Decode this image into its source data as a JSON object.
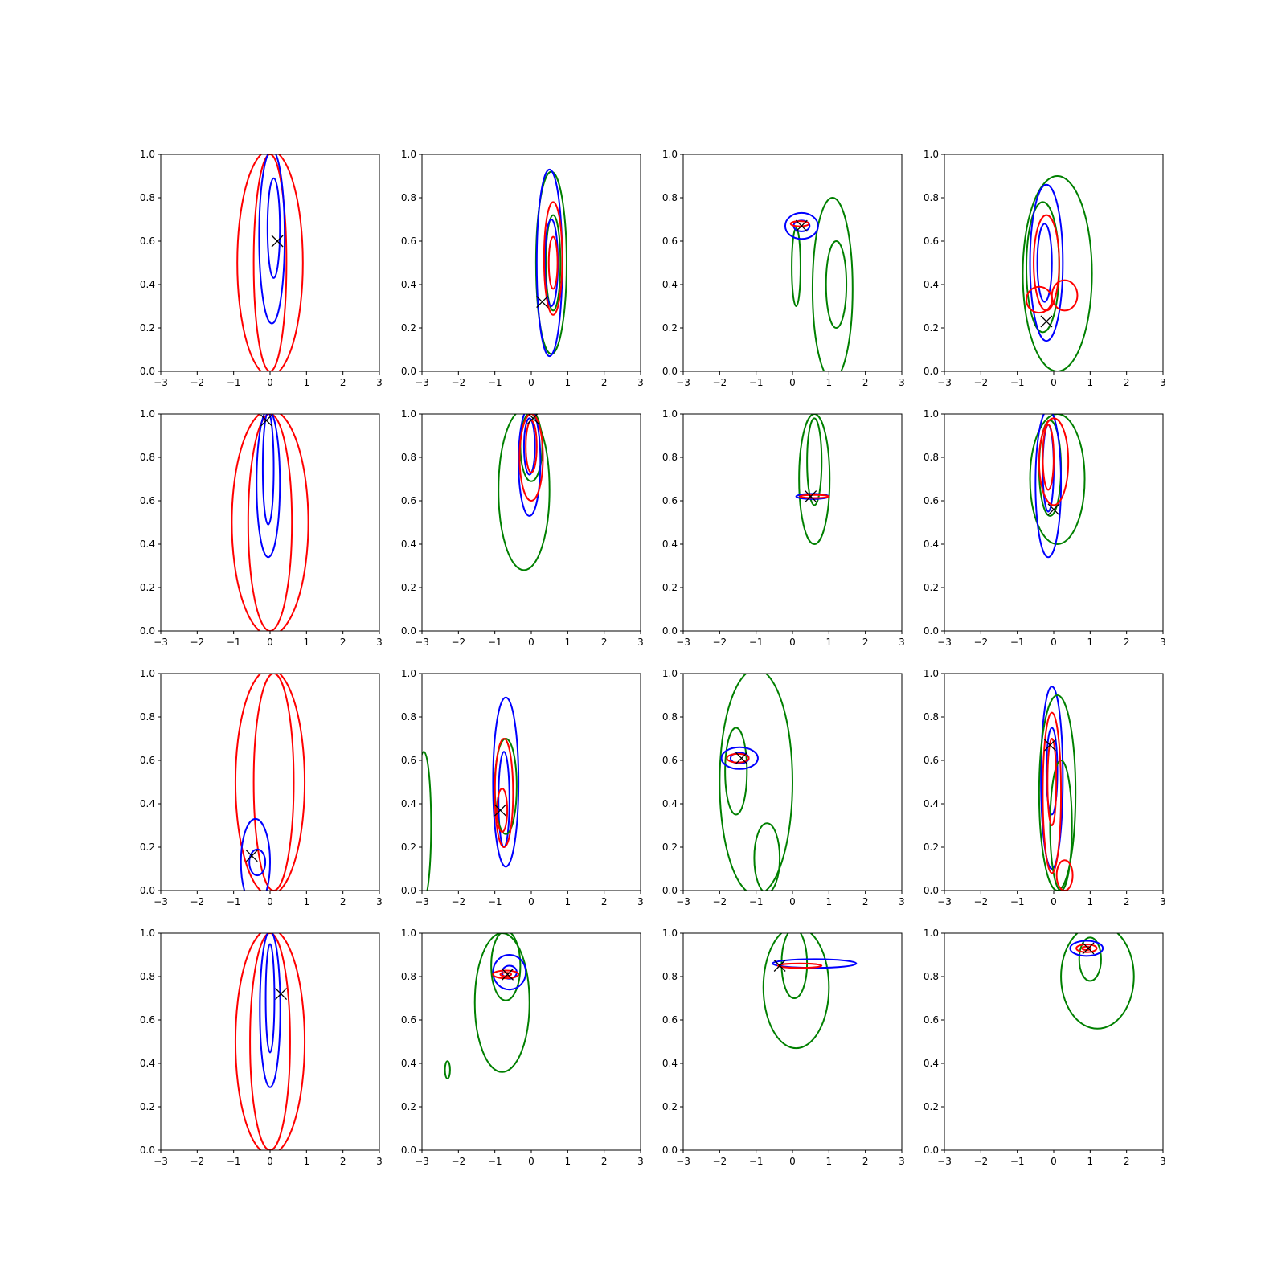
{
  "chart_data": {
    "type": "contour",
    "layout": {
      "rows": 4,
      "cols": 4
    },
    "xlim": [
      -3,
      3
    ],
    "ylim": [
      0,
      1
    ],
    "xticks": [
      -3,
      -2,
      -1,
      0,
      1,
      2,
      3
    ],
    "yticks": [
      0.0,
      0.2,
      0.4,
      0.6,
      0.8,
      1.0
    ],
    "xtick_labels": [
      "−3",
      "−2",
      "−1",
      "0",
      "1",
      "2",
      "3"
    ],
    "ytick_labels": [
      "0.0",
      "0.2",
      "0.4",
      "0.6",
      "0.8",
      "1.0"
    ],
    "grid": false,
    "colors": {
      "red": "#ff0000",
      "blue": "#0000ff",
      "green": "#008000",
      "marker": "#000000"
    },
    "panels": [
      {
        "marker": [
          0.2,
          0.6
        ],
        "contours": [
          {
            "color": "red",
            "levels": [
              {
                "cx": 0.0,
                "cy": 0.5,
                "rx": 0.9,
                "ry": 0.52
              },
              {
                "cx": 0.0,
                "cy": 0.5,
                "rx": 0.45,
                "ry": 0.5
              }
            ]
          },
          {
            "color": "blue",
            "levels": [
              {
                "cx": 0.05,
                "cy": 0.62,
                "rx": 0.35,
                "ry": 0.4
              },
              {
                "cx": 0.1,
                "cy": 0.66,
                "rx": 0.17,
                "ry": 0.23
              }
            ]
          }
        ]
      },
      {
        "marker": [
          0.3,
          0.32
        ],
        "contours": [
          {
            "color": "green",
            "levels": [
              {
                "cx": 0.55,
                "cy": 0.5,
                "rx": 0.42,
                "ry": 0.42
              },
              {
                "cx": 0.6,
                "cy": 0.5,
                "rx": 0.2,
                "ry": 0.22
              }
            ]
          },
          {
            "color": "blue",
            "levels": [
              {
                "cx": 0.5,
                "cy": 0.5,
                "rx": 0.35,
                "ry": 0.43
              },
              {
                "cx": 0.55,
                "cy": 0.5,
                "rx": 0.18,
                "ry": 0.2
              }
            ]
          },
          {
            "color": "red",
            "levels": [
              {
                "cx": 0.6,
                "cy": 0.52,
                "rx": 0.25,
                "ry": 0.26
              },
              {
                "cx": 0.6,
                "cy": 0.5,
                "rx": 0.12,
                "ry": 0.12
              }
            ]
          }
        ]
      },
      {
        "marker": [
          0.25,
          0.67
        ],
        "contours": [
          {
            "color": "green",
            "levels": [
              {
                "cx": 1.1,
                "cy": 0.38,
                "rx": 0.55,
                "ry": 0.42
              },
              {
                "cx": 1.2,
                "cy": 0.4,
                "rx": 0.28,
                "ry": 0.2
              },
              {
                "cx": 0.1,
                "cy": 0.48,
                "rx": 0.12,
                "ry": 0.18
              }
            ]
          },
          {
            "color": "blue",
            "levels": [
              {
                "cx": 0.25,
                "cy": 0.67,
                "rx": 0.45,
                "ry": 0.06
              },
              {
                "cx": 0.25,
                "cy": 0.67,
                "rx": 0.22,
                "ry": 0.025
              }
            ]
          },
          {
            "color": "red",
            "levels": [
              {
                "cx": 0.2,
                "cy": 0.68,
                "rx": 0.25,
                "ry": 0.012
              }
            ]
          }
        ]
      },
      {
        "marker": [
          -0.2,
          0.23
        ],
        "contours": [
          {
            "color": "green",
            "levels": [
              {
                "cx": 0.1,
                "cy": 0.45,
                "rx": 0.95,
                "ry": 0.45
              },
              {
                "cx": -0.3,
                "cy": 0.48,
                "rx": 0.45,
                "ry": 0.3
              }
            ]
          },
          {
            "color": "blue",
            "levels": [
              {
                "cx": -0.2,
                "cy": 0.5,
                "rx": 0.45,
                "ry": 0.36
              },
              {
                "cx": -0.25,
                "cy": 0.5,
                "rx": 0.2,
                "ry": 0.18
              }
            ]
          },
          {
            "color": "red",
            "levels": [
              {
                "cx": -0.2,
                "cy": 0.5,
                "rx": 0.35,
                "ry": 0.22
              },
              {
                "cx": 0.3,
                "cy": 0.35,
                "rx": 0.35,
                "ry": 0.07
              },
              {
                "cx": -0.4,
                "cy": 0.33,
                "rx": 0.35,
                "ry": 0.06
              }
            ]
          }
        ]
      },
      {
        "marker": [
          -0.1,
          0.97
        ],
        "contours": [
          {
            "color": "red",
            "levels": [
              {
                "cx": 0.0,
                "cy": 0.5,
                "rx": 1.05,
                "ry": 0.52
              },
              {
                "cx": 0.0,
                "cy": 0.5,
                "rx": 0.6,
                "ry": 0.5
              }
            ]
          },
          {
            "color": "blue",
            "levels": [
              {
                "cx": -0.05,
                "cy": 0.68,
                "rx": 0.32,
                "ry": 0.34
              },
              {
                "cx": -0.05,
                "cy": 0.75,
                "rx": 0.15,
                "ry": 0.26
              }
            ]
          }
        ]
      },
      {
        "marker": [
          0.05,
          0.98
        ],
        "contours": [
          {
            "color": "green",
            "levels": [
              {
                "cx": -0.2,
                "cy": 0.65,
                "rx": 0.7,
                "ry": 0.37
              },
              {
                "cx": 0.0,
                "cy": 0.85,
                "rx": 0.3,
                "ry": 0.16
              }
            ]
          },
          {
            "color": "blue",
            "levels": [
              {
                "cx": -0.05,
                "cy": 0.78,
                "rx": 0.3,
                "ry": 0.25
              },
              {
                "cx": -0.05,
                "cy": 0.85,
                "rx": 0.15,
                "ry": 0.13
              }
            ]
          },
          {
            "color": "red",
            "levels": [
              {
                "cx": 0.0,
                "cy": 0.8,
                "rx": 0.32,
                "ry": 0.2
              },
              {
                "cx": 0.0,
                "cy": 0.85,
                "rx": 0.15,
                "ry": 0.12
              }
            ]
          }
        ]
      },
      {
        "marker": [
          0.5,
          0.62
        ],
        "contours": [
          {
            "color": "green",
            "levels": [
              {
                "cx": 0.6,
                "cy": 0.7,
                "rx": 0.42,
                "ry": 0.3
              },
              {
                "cx": 0.6,
                "cy": 0.78,
                "rx": 0.2,
                "ry": 0.2
              }
            ]
          },
          {
            "color": "blue",
            "levels": [
              {
                "cx": 0.55,
                "cy": 0.62,
                "rx": 0.45,
                "ry": 0.012
              }
            ]
          },
          {
            "color": "red",
            "levels": [
              {
                "cx": 0.6,
                "cy": 0.62,
                "rx": 0.4,
                "ry": 0.007
              }
            ]
          }
        ]
      },
      {
        "marker": [
          0.0,
          0.56
        ],
        "contours": [
          {
            "color": "green",
            "levels": [
              {
                "cx": 0.1,
                "cy": 0.7,
                "rx": 0.75,
                "ry": 0.3
              },
              {
                "cx": -0.1,
                "cy": 0.75,
                "rx": 0.3,
                "ry": 0.22
              }
            ]
          },
          {
            "color": "blue",
            "levels": [
              {
                "cx": -0.15,
                "cy": 0.68,
                "rx": 0.35,
                "ry": 0.34
              },
              {
                "cx": -0.15,
                "cy": 0.75,
                "rx": 0.15,
                "ry": 0.2
              }
            ]
          },
          {
            "color": "red",
            "levels": [
              {
                "cx": 0.0,
                "cy": 0.78,
                "rx": 0.4,
                "ry": 0.2
              },
              {
                "cx": -0.15,
                "cy": 0.8,
                "rx": 0.15,
                "ry": 0.15
              }
            ]
          }
        ]
      },
      {
        "marker": [
          -0.5,
          0.16
        ],
        "contours": [
          {
            "color": "red",
            "levels": [
              {
                "cx": 0.0,
                "cy": 0.5,
                "rx": 0.95,
                "ry": 0.52
              },
              {
                "cx": 0.1,
                "cy": 0.5,
                "rx": 0.55,
                "ry": 0.5
              }
            ]
          },
          {
            "color": "blue",
            "levels": [
              {
                "cx": -0.4,
                "cy": 0.13,
                "rx": 0.4,
                "ry": 0.2
              },
              {
                "cx": -0.35,
                "cy": 0.13,
                "rx": 0.22,
                "ry": 0.06
              }
            ]
          }
        ]
      },
      {
        "marker": [
          -0.85,
          0.37
        ],
        "contours": [
          {
            "color": "blue",
            "levels": [
              {
                "cx": -0.7,
                "cy": 0.5,
                "rx": 0.35,
                "ry": 0.39
              },
              {
                "cx": -0.75,
                "cy": 0.42,
                "rx": 0.15,
                "ry": 0.22
              }
            ]
          },
          {
            "color": "green",
            "levels": [
              {
                "cx": -0.7,
                "cy": 0.48,
                "rx": 0.3,
                "ry": 0.22
              },
              {
                "cx": -2.95,
                "cy": 0.3,
                "rx": 0.2,
                "ry": 0.34
              }
            ]
          },
          {
            "color": "red",
            "levels": [
              {
                "cx": -0.75,
                "cy": 0.45,
                "rx": 0.25,
                "ry": 0.25
              },
              {
                "cx": -0.8,
                "cy": 0.37,
                "rx": 0.14,
                "ry": 0.1
              }
            ]
          }
        ]
      },
      {
        "marker": [
          -1.4,
          0.61
        ],
        "contours": [
          {
            "color": "green",
            "levels": [
              {
                "cx": -1.0,
                "cy": 0.5,
                "rx": 1.0,
                "ry": 0.52
              },
              {
                "cx": -1.55,
                "cy": 0.55,
                "rx": 0.3,
                "ry": 0.2
              },
              {
                "cx": -0.7,
                "cy": 0.15,
                "rx": 0.35,
                "ry": 0.16
              }
            ]
          },
          {
            "color": "blue",
            "levels": [
              {
                "cx": -1.45,
                "cy": 0.61,
                "rx": 0.5,
                "ry": 0.05
              },
              {
                "cx": -1.45,
                "cy": 0.61,
                "rx": 0.25,
                "ry": 0.025
              }
            ]
          },
          {
            "color": "red",
            "levels": [
              {
                "cx": -1.5,
                "cy": 0.61,
                "rx": 0.3,
                "ry": 0.02
              }
            ]
          }
        ]
      },
      {
        "marker": [
          -0.1,
          0.67
        ],
        "contours": [
          {
            "color": "blue",
            "levels": [
              {
                "cx": -0.05,
                "cy": 0.52,
                "rx": 0.3,
                "ry": 0.42
              },
              {
                "cx": -0.05,
                "cy": 0.55,
                "rx": 0.15,
                "ry": 0.2
              }
            ]
          },
          {
            "color": "green",
            "levels": [
              {
                "cx": 0.1,
                "cy": 0.45,
                "rx": 0.5,
                "ry": 0.45
              },
              {
                "cx": 0.2,
                "cy": 0.3,
                "rx": 0.3,
                "ry": 0.3
              }
            ]
          },
          {
            "color": "red",
            "levels": [
              {
                "cx": -0.05,
                "cy": 0.45,
                "rx": 0.25,
                "ry": 0.37
              },
              {
                "cx": -0.05,
                "cy": 0.5,
                "rx": 0.12,
                "ry": 0.2
              },
              {
                "cx": 0.3,
                "cy": 0.07,
                "rx": 0.22,
                "ry": 0.07
              }
            ]
          }
        ]
      },
      {
        "marker": [
          0.3,
          0.72
        ],
        "contours": [
          {
            "color": "red",
            "levels": [
              {
                "cx": 0.0,
                "cy": 0.5,
                "rx": 0.95,
                "ry": 0.52
              },
              {
                "cx": 0.0,
                "cy": 0.5,
                "rx": 0.55,
                "ry": 0.5
              }
            ]
          },
          {
            "color": "blue",
            "levels": [
              {
                "cx": 0.0,
                "cy": 0.65,
                "rx": 0.28,
                "ry": 0.36
              },
              {
                "cx": 0.0,
                "cy": 0.7,
                "rx": 0.12,
                "ry": 0.25
              }
            ]
          }
        ]
      },
      {
        "marker": [
          -0.65,
          0.81
        ],
        "contours": [
          {
            "color": "green",
            "levels": [
              {
                "cx": -0.8,
                "cy": 0.68,
                "rx": 0.75,
                "ry": 0.32
              },
              {
                "cx": -0.7,
                "cy": 0.85,
                "rx": 0.4,
                "ry": 0.16
              },
              {
                "cx": -2.3,
                "cy": 0.37,
                "rx": 0.07,
                "ry": 0.04
              }
            ]
          },
          {
            "color": "blue",
            "levels": [
              {
                "cx": -0.6,
                "cy": 0.82,
                "rx": 0.45,
                "ry": 0.08
              },
              {
                "cx": -0.6,
                "cy": 0.82,
                "rx": 0.2,
                "ry": 0.03
              }
            ]
          },
          {
            "color": "red",
            "levels": [
              {
                "cx": -0.7,
                "cy": 0.81,
                "rx": 0.35,
                "ry": 0.018
              },
              {
                "cx": -0.7,
                "cy": 0.81,
                "rx": 0.15,
                "ry": 0.008
              }
            ]
          }
        ]
      },
      {
        "marker": [
          -0.35,
          0.85
        ],
        "contours": [
          {
            "color": "green",
            "levels": [
              {
                "cx": 0.1,
                "cy": 0.75,
                "rx": 0.9,
                "ry": 0.28
              },
              {
                "cx": 0.05,
                "cy": 0.86,
                "rx": 0.35,
                "ry": 0.16
              }
            ]
          },
          {
            "color": "blue",
            "levels": [
              {
                "cx": 0.6,
                "cy": 0.86,
                "rx": 1.15,
                "ry": 0.02
              }
            ]
          },
          {
            "color": "red",
            "levels": [
              {
                "cx": 0.2,
                "cy": 0.85,
                "rx": 0.6,
                "ry": 0.01
              }
            ]
          }
        ]
      },
      {
        "marker": [
          0.95,
          0.93
        ],
        "contours": [
          {
            "color": "green",
            "levels": [
              {
                "cx": 1.2,
                "cy": 0.8,
                "rx": 1.0,
                "ry": 0.24
              },
              {
                "cx": 1.0,
                "cy": 0.88,
                "rx": 0.3,
                "ry": 0.1
              }
            ]
          },
          {
            "color": "blue",
            "levels": [
              {
                "cx": 0.9,
                "cy": 0.93,
                "rx": 0.45,
                "ry": 0.035
              }
            ]
          },
          {
            "color": "red",
            "levels": [
              {
                "cx": 0.9,
                "cy": 0.93,
                "rx": 0.28,
                "ry": 0.018
              },
              {
                "cx": 0.9,
                "cy": 0.93,
                "rx": 0.12,
                "ry": 0.008
              }
            ]
          }
        ]
      }
    ]
  }
}
